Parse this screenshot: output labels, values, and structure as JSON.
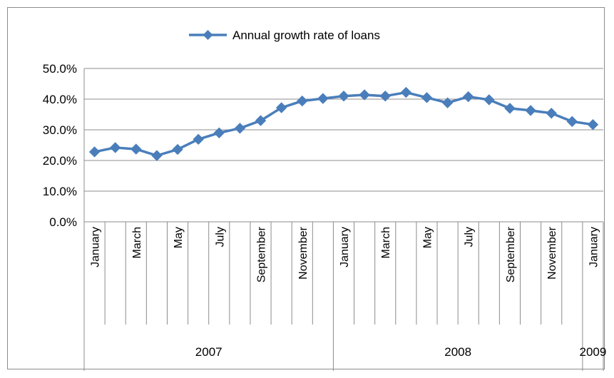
{
  "chart_data": {
    "type": "line",
    "title": "",
    "xlabel": "",
    "ylabel": "",
    "legend_position": "top",
    "grid": true,
    "ylim": [
      0,
      50
    ],
    "yticks": [
      "0.0%",
      "10.0%",
      "20.0%",
      "30.0%",
      "40.0%",
      "50.0%"
    ],
    "years": [
      {
        "label": "2007",
        "months": 12
      },
      {
        "label": "2008",
        "months": 12
      },
      {
        "label": "2009",
        "months": 1
      }
    ],
    "month_labels": [
      "January",
      "",
      "March",
      "",
      "May",
      "",
      "July",
      "",
      "September",
      "",
      "November",
      "",
      "January",
      "",
      "March",
      "",
      "May",
      "",
      "July",
      "",
      "September",
      "",
      "November",
      "",
      "January"
    ],
    "x": [
      "2007-01",
      "2007-02",
      "2007-03",
      "2007-04",
      "2007-05",
      "2007-06",
      "2007-07",
      "2007-08",
      "2007-09",
      "2007-10",
      "2007-11",
      "2007-12",
      "2008-01",
      "2008-02",
      "2008-03",
      "2008-04",
      "2008-05",
      "2008-06",
      "2008-07",
      "2008-08",
      "2008-09",
      "2008-10",
      "2008-11",
      "2008-12",
      "2009-01"
    ],
    "series": [
      {
        "name": "Annual growth rate of loans",
        "color": "#4a7ebb",
        "values": [
          22.8,
          24.2,
          23.7,
          21.6,
          23.6,
          26.9,
          29.0,
          30.5,
          33.0,
          37.2,
          39.4,
          40.2,
          41.0,
          41.4,
          41.0,
          42.2,
          40.5,
          38.8,
          40.8,
          39.8,
          37.0,
          36.3,
          35.4,
          32.7,
          31.7
        ]
      }
    ]
  }
}
